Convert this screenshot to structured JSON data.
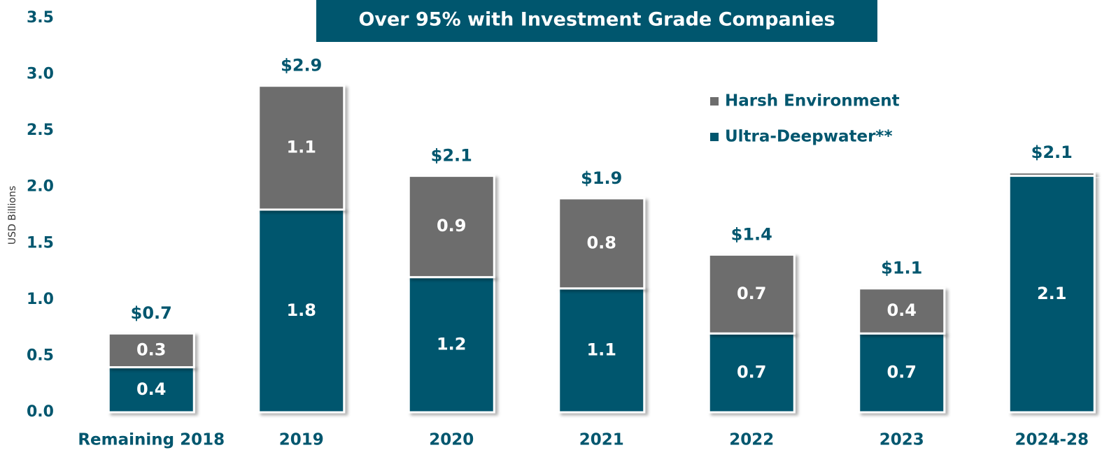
{
  "chart_data": {
    "type": "stacked_bar",
    "title": "Over 95% with Investment Grade Companies",
    "y_label": "USD Billions",
    "categories": [
      "Remaining 2018",
      "2019",
      "2020",
      "2021",
      "2022",
      "2023",
      "2024-28"
    ],
    "series": [
      {
        "name": "Ultra-Deepwater**",
        "color": "#00566e",
        "values": [
          0.4,
          1.8,
          1.2,
          1.1,
          0.7,
          0.7,
          2.1
        ]
      },
      {
        "name": "Harsh Environment",
        "color": "#6d6d6d",
        "values": [
          0.3,
          1.1,
          0.9,
          0.8,
          0.7,
          0.4,
          0.03
        ],
        "value_labels": [
          "0.3",
          "1.1",
          "0.9",
          "0.8",
          "0.7",
          "0.4",
          null
        ]
      }
    ],
    "total_labels": [
      "$0.7",
      "$2.9",
      "$2.1",
      "$1.9",
      "$1.4",
      "$1.1",
      "$2.1"
    ],
    "ylim": [
      0,
      3.5
    ],
    "yticks": [
      {
        "value": 0,
        "label": "0.0"
      },
      0.5,
      {
        "value": 1,
        "label": "1.0"
      },
      1.5,
      {
        "value": 2,
        "label": "2.0"
      },
      2.5,
      {
        "value": 3,
        "label": "3.0"
      },
      3.5
    ],
    "grid": false,
    "legend": "upper right"
  }
}
